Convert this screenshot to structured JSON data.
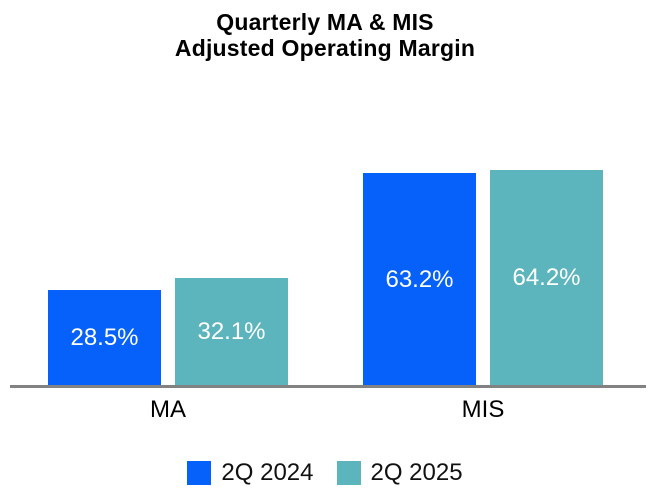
{
  "title": {
    "line1": "Quarterly MA & MIS",
    "line2": "Adjusted Operating Margin"
  },
  "colors": {
    "series_2q2024": "#0561FA",
    "series_2q2025": "#5CB5BC",
    "axis_line": "#828282",
    "bar_label_text": "#FFFFFF",
    "title_text": "#000000"
  },
  "legend": [
    {
      "label": "2Q 2024",
      "color": "#0561FA"
    },
    {
      "label": "2Q 2025",
      "color": "#5CB5BC"
    }
  ],
  "chart_data": {
    "type": "bar",
    "title": "Quarterly MA & MIS Adjusted Operating Margin",
    "categories": [
      "MA",
      "MIS"
    ],
    "series": [
      {
        "name": "2Q 2024",
        "color": "#0561FA",
        "values": [
          28.5,
          63.2
        ],
        "labels": [
          "28.5%",
          "63.2%"
        ]
      },
      {
        "name": "2Q 2025",
        "color": "#5CB5BC",
        "values": [
          32.1,
          64.2
        ],
        "labels": [
          "32.1%",
          "64.2%"
        ]
      }
    ],
    "xlabel": "",
    "ylabel": "",
    "value_suffix": "%",
    "ylim": [
      0,
      70
    ],
    "grid": false,
    "y_axis_visible": false,
    "data_labels_inside": true,
    "legend_position": "bottom"
  }
}
